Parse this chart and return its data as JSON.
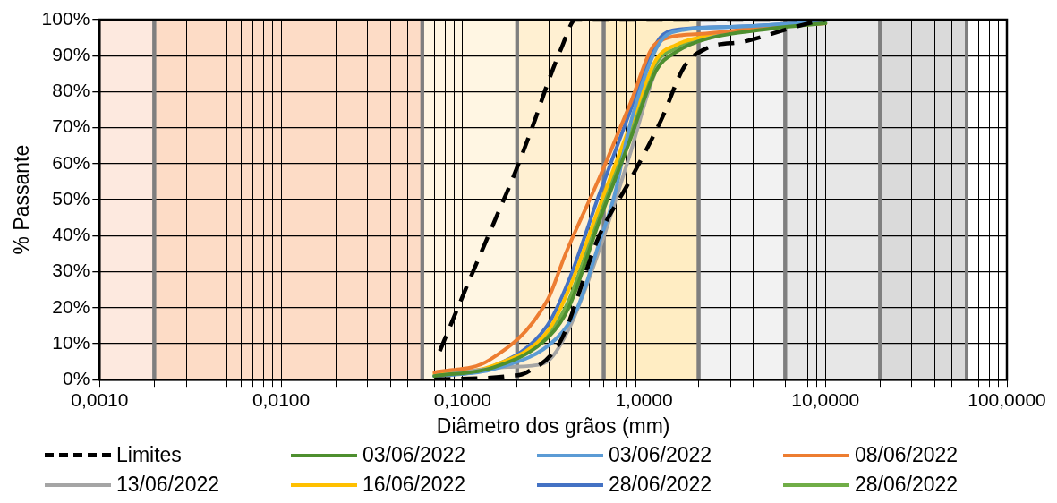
{
  "chart_data": {
    "type": "line",
    "xlabel": "Diâmetro dos grãos (mm)",
    "ylabel": "% Passante",
    "log": "x",
    "grid": true,
    "legend": "bottom",
    "marker": "none",
    "xlim": [
      0.001,
      100
    ],
    "ylim": [
      0,
      100
    ],
    "xticks": [
      {
        "value": 0.001,
        "label": "0,0010"
      },
      {
        "value": 0.002,
        "label": null
      },
      {
        "value": 0.003,
        "label": null
      },
      {
        "value": 0.004,
        "label": null
      },
      {
        "value": 0.005,
        "label": null
      },
      {
        "value": 0.006,
        "label": null
      },
      {
        "value": 0.007,
        "label": null
      },
      {
        "value": 0.008,
        "label": null
      },
      {
        "value": 0.009,
        "label": null
      },
      {
        "value": 0.01,
        "label": "0,0100"
      },
      {
        "value": 0.02,
        "label": null
      },
      {
        "value": 0.03,
        "label": null
      },
      {
        "value": 0.04,
        "label": null
      },
      {
        "value": 0.05,
        "label": null
      },
      {
        "value": 0.06,
        "label": null
      },
      {
        "value": 0.07,
        "label": null
      },
      {
        "value": 0.08,
        "label": null
      },
      {
        "value": 0.09,
        "label": null
      },
      {
        "value": 0.1,
        "label": "0,1000"
      },
      {
        "value": 0.2,
        "label": null
      },
      {
        "value": 0.3,
        "label": null
      },
      {
        "value": 0.4,
        "label": null
      },
      {
        "value": 0.5,
        "label": null
      },
      {
        "value": 0.6,
        "label": null
      },
      {
        "value": 0.7,
        "label": null
      },
      {
        "value": 0.8,
        "label": null
      },
      {
        "value": 0.9,
        "label": null
      },
      {
        "value": 1,
        "label": "1,0000"
      },
      {
        "value": 2,
        "label": null
      },
      {
        "value": 3,
        "label": null
      },
      {
        "value": 4,
        "label": null
      },
      {
        "value": 5,
        "label": null
      },
      {
        "value": 6,
        "label": null
      },
      {
        "value": 7,
        "label": null
      },
      {
        "value": 8,
        "label": null
      },
      {
        "value": 9,
        "label": null
      },
      {
        "value": 10,
        "label": "10,0000"
      },
      {
        "value": 20,
        "label": null
      },
      {
        "value": 30,
        "label": null
      },
      {
        "value": 40,
        "label": null
      },
      {
        "value": 50,
        "label": null
      },
      {
        "value": 60,
        "label": null
      },
      {
        "value": 70,
        "label": null
      },
      {
        "value": 80,
        "label": null
      },
      {
        "value": 90,
        "label": null
      },
      {
        "value": 100,
        "label": "100,0000"
      }
    ],
    "yticks": [
      {
        "value": 0,
        "label": "0%"
      },
      {
        "value": 10,
        "label": "10%"
      },
      {
        "value": 20,
        "label": "20%"
      },
      {
        "value": 30,
        "label": "30%"
      },
      {
        "value": 40,
        "label": "40%"
      },
      {
        "value": 50,
        "label": "50%"
      },
      {
        "value": 60,
        "label": "60%"
      },
      {
        "value": 70,
        "label": "70%"
      },
      {
        "value": 80,
        "label": "80%"
      },
      {
        "value": 90,
        "label": "90%"
      },
      {
        "value": 100,
        "label": "100%"
      }
    ],
    "bands": [
      {
        "axis": "x",
        "from": 0.001,
        "to": 0.002,
        "color": "#fde9df"
      },
      {
        "axis": "x",
        "from": 0.002,
        "to": 0.06,
        "color": "#fddcc6"
      },
      {
        "axis": "x",
        "from": 0.06,
        "to": 0.2,
        "color": "#fff6e3"
      },
      {
        "axis": "x",
        "from": 0.2,
        "to": 0.6,
        "color": "#fff0d2"
      },
      {
        "axis": "x",
        "from": 0.6,
        "to": 2,
        "color": "#ffedc3"
      },
      {
        "axis": "x",
        "from": 2,
        "to": 6,
        "color": "#f2f2f2"
      },
      {
        "axis": "x",
        "from": 6,
        "to": 20,
        "color": "#e7e7e7"
      },
      {
        "axis": "x",
        "from": 20,
        "to": 60,
        "color": "#dadada"
      }
    ],
    "series": [
      {
        "name": "Limites",
        "color": "#000000",
        "line_style": "dashed",
        "x": [
          0.075,
          0.112,
          0.153,
          0.193,
          0.25,
          0.293,
          0.35,
          0.42,
          1,
          10
        ],
        "values": [
          8,
          29,
          45,
          57,
          72,
          82,
          92,
          100,
          100,
          100
        ]
      },
      {
        "color": "#000000",
        "line_style": "dashed",
        "x": [
          0.07,
          0.178,
          0.225,
          0.345,
          0.567,
          0.83,
          1.24,
          1.67,
          2.2,
          3.63,
          5.8,
          8.9,
          10
        ],
        "values": [
          0,
          1,
          2,
          10.5,
          40,
          55,
          72,
          87,
          92,
          94,
          97,
          99.5,
          100
        ]
      },
      {
        "name": "03/06/2022",
        "color": "#4e8f2f",
        "x": [
          0.07,
          0.15,
          0.3,
          0.385,
          0.567,
          0.83,
          1.17,
          1.5,
          2,
          5,
          10
        ],
        "values": [
          1,
          3.5,
          12,
          20,
          44,
          66,
          86,
          91,
          94,
          97.5,
          99
        ]
      },
      {
        "name": "03/06/2022",
        "color": "#5b9bd5",
        "x": [
          0.07,
          0.15,
          0.33,
          0.43,
          0.567,
          0.69,
          0.83,
          1.17,
          1.43,
          3,
          10
        ],
        "values": [
          1,
          3,
          11.5,
          20,
          38,
          51.5,
          70,
          92,
          96.5,
          98,
          99.5
        ]
      },
      {
        "name": "08/06/2022",
        "color": "#ed7d31",
        "x": [
          0.07,
          0.141,
          0.293,
          0.37,
          0.567,
          0.83,
          1.17,
          2,
          5,
          10
        ],
        "values": [
          2,
          5.5,
          22,
          35,
          56,
          76,
          93.5,
          96,
          98,
          99
        ]
      },
      {
        "name": "13/06/2022",
        "color": "#a5a5a5",
        "x": [
          0.07,
          0.178,
          0.28,
          0.385,
          0.567,
          0.83,
          1.17,
          1.5,
          2,
          5,
          10
        ],
        "values": [
          1,
          3.5,
          4.5,
          14,
          36,
          62,
          86,
          91,
          94,
          98,
          99
        ]
      },
      {
        "name": "16/06/2022",
        "color": "#ffc000",
        "x": [
          0.07,
          0.15,
          0.3,
          0.385,
          0.567,
          0.83,
          1.17,
          1.5,
          2,
          5,
          10
        ],
        "values": [
          1.5,
          4,
          14,
          25,
          48,
          70,
          89,
          93,
          95,
          98,
          99
        ]
      },
      {
        "name": "28/06/2022",
        "color": "#4472c4",
        "x": [
          0.07,
          0.141,
          0.293,
          0.385,
          0.567,
          0.83,
          1.17,
          1.43,
          3,
          10
        ],
        "values": [
          1,
          3.3,
          15,
          27.5,
          51.5,
          74,
          93.5,
          97,
          98,
          99.5
        ]
      },
      {
        "name": "28/06/2022",
        "color": "#70ad47",
        "x": [
          0.07,
          0.15,
          0.3,
          0.385,
          0.567,
          0.83,
          1.17,
          1.5,
          2,
          5,
          10
        ],
        "values": [
          1,
          3.5,
          13,
          22,
          46,
          68,
          88,
          92,
          94.5,
          98,
          99.5
        ]
      }
    ]
  }
}
